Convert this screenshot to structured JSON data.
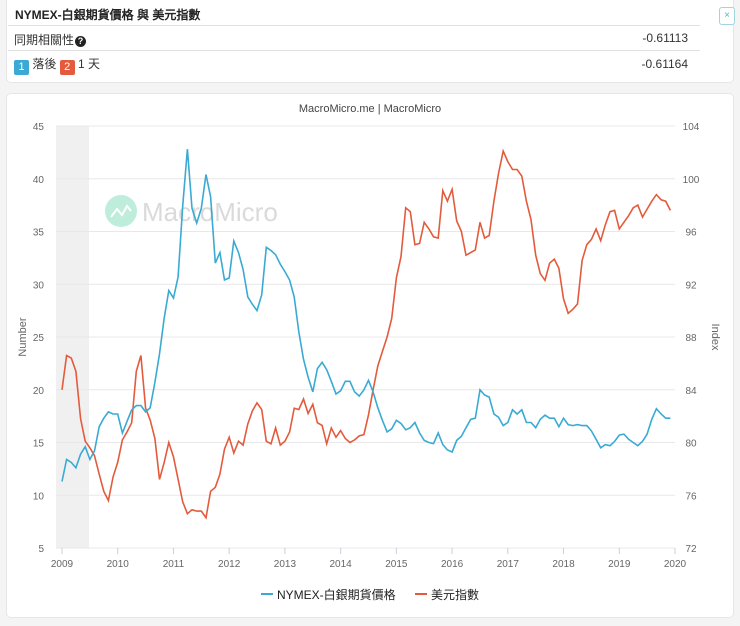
{
  "info": {
    "title": "NYMEX-白銀期貨價格 與 美元指數",
    "close_label": "×",
    "correlation_label": "同期相關性",
    "help_icon": "?",
    "correlation_value": "-0.61113",
    "lag_badge_1": "1",
    "lag_text_1": "落後",
    "lag_badge_2": "2",
    "lag_text_2": "1 天",
    "lag_value": "-0.61164"
  },
  "chart": {
    "source": "MacroMicro.me | MacroMicro",
    "watermark": "MacroMicro",
    "left_axis_title": "Number",
    "right_axis_title": "Index",
    "left_ticks": [
      "45",
      "40",
      "35",
      "30",
      "25",
      "20",
      "15",
      "10",
      "5"
    ],
    "right_ticks": [
      "104",
      "100",
      "96",
      "92",
      "88",
      "84",
      "80",
      "76",
      "72"
    ],
    "x_ticks": [
      "2009",
      "2010",
      "2011",
      "2012",
      "2013",
      "2014",
      "2015",
      "2016",
      "2017",
      "2018",
      "2019",
      "2020"
    ],
    "legend": [
      {
        "label": "NYMEX-白銀期貨價格",
        "color": "#3aaad4"
      },
      {
        "label": "美元指數",
        "color": "#e35b3c"
      }
    ],
    "shaded_region": {
      "from": "2009-01",
      "to": "2009-06"
    }
  },
  "chart_data": {
    "type": "line",
    "title": "NYMEX-白銀期貨價格 與 美元指數",
    "subtitle": "MacroMicro.me | MacroMicro",
    "xlabel": "",
    "ylabel": "Number",
    "ylabel_right": "Index",
    "ylim": [
      5,
      45
    ],
    "ylim_right": [
      72,
      104
    ],
    "xlim": [
      "2009-01",
      "2020-01"
    ],
    "grid": true,
    "legend_position": "bottom",
    "x_start": "2009-01",
    "x_step": "month",
    "series": [
      {
        "name": "NYMEX-白銀期貨價格",
        "axis": "left",
        "color": "#3aaad4",
        "values": [
          11.3,
          13.4,
          13.1,
          12.6,
          13.9,
          14.6,
          13.4,
          14.2,
          16.5,
          17.3,
          17.9,
          17.7,
          17.7,
          15.9,
          17.0,
          18.1,
          18.5,
          18.5,
          17.9,
          18.3,
          20.7,
          23.4,
          26.8,
          29.4,
          28.7,
          30.7,
          37.4,
          42.8,
          37.2,
          35.8,
          37.2,
          40.4,
          38.3,
          32.0,
          33.0,
          30.4,
          30.6,
          34.1,
          33.0,
          31.4,
          28.8,
          28.1,
          27.5,
          29.0,
          33.5,
          33.2,
          32.8,
          31.9,
          31.2,
          30.4,
          28.8,
          25.5,
          22.9,
          21.2,
          19.8,
          22.0,
          22.6,
          21.9,
          20.8,
          19.6,
          19.9,
          20.8,
          20.8,
          19.8,
          19.4,
          20.0,
          20.9,
          19.8,
          18.3,
          17.1,
          16.0,
          16.3,
          17.1,
          16.8,
          16.2,
          16.4,
          16.9,
          15.9,
          15.2,
          15.0,
          14.9,
          15.9,
          14.8,
          14.3,
          14.1,
          15.2,
          15.6,
          16.4,
          17.2,
          17.3,
          20.0,
          19.5,
          19.3,
          17.7,
          17.4,
          16.6,
          16.9,
          18.1,
          17.7,
          18.1,
          16.9,
          16.9,
          16.4,
          17.2,
          17.6,
          17.3,
          17.3,
          16.5,
          17.3,
          16.7,
          16.6,
          16.7,
          16.6,
          16.6,
          16.1,
          15.3,
          14.5,
          14.8,
          14.7,
          15.1,
          15.7,
          15.8,
          15.3,
          15.0,
          14.7,
          15.1,
          15.8,
          17.2,
          18.2,
          17.7,
          17.3,
          17.3
        ]
      },
      {
        "name": "美元指數",
        "axis": "right",
        "color": "#e35b3c",
        "values": [
          84.0,
          86.6,
          86.4,
          85.4,
          81.8,
          80.1,
          79.6,
          79.0,
          77.6,
          76.3,
          75.6,
          77.4,
          78.5,
          80.2,
          80.8,
          81.5,
          85.4,
          86.6,
          82.6,
          81.7,
          80.3,
          77.2,
          78.5,
          80.0,
          78.9,
          77.2,
          75.5,
          74.6,
          74.9,
          74.8,
          74.8,
          74.3,
          76.3,
          76.6,
          77.6,
          79.5,
          80.4,
          79.2,
          80.1,
          79.8,
          81.4,
          82.4,
          83.0,
          82.5,
          80.1,
          79.9,
          81.1,
          79.8,
          80.1,
          80.8,
          82.6,
          82.5,
          83.3,
          82.2,
          82.9,
          81.5,
          81.3,
          79.9,
          81.1,
          80.4,
          80.9,
          80.3,
          80.0,
          80.2,
          80.5,
          80.6,
          82.1,
          84.0,
          85.8,
          86.9,
          88.0,
          89.4,
          92.5,
          94.1,
          97.8,
          97.5,
          95.0,
          95.1,
          96.7,
          96.2,
          95.6,
          95.5,
          99.1,
          98.3,
          99.2,
          96.8,
          96.0,
          94.2,
          94.4,
          94.6,
          96.7,
          95.5,
          95.7,
          98.3,
          100.4,
          102.1,
          101.3,
          100.7,
          100.7,
          100.2,
          98.3,
          96.9,
          94.2,
          92.8,
          92.3,
          93.6,
          93.9,
          93.2,
          90.9,
          89.8,
          90.1,
          90.5,
          93.8,
          95.0,
          95.4,
          96.2,
          95.3,
          96.5,
          97.5,
          97.6,
          96.2,
          96.7,
          97.2,
          97.8,
          98.0,
          97.1,
          97.7,
          98.3,
          98.8,
          98.4,
          98.3,
          97.6
        ]
      }
    ]
  }
}
